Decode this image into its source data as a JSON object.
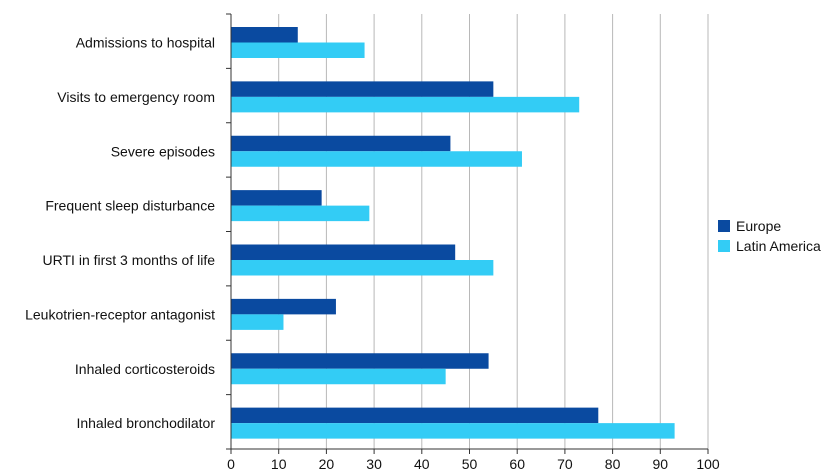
{
  "chart_data": {
    "type": "bar",
    "orientation": "horizontal",
    "title": "",
    "xlabel": "",
    "ylabel": "",
    "xlim": [
      0,
      100
    ],
    "x_ticks": [
      "0",
      "10",
      "20",
      "30",
      "40",
      "50",
      "60",
      "70",
      "80",
      "90",
      "100"
    ],
    "grid": "vertical",
    "legend_position": "right",
    "categories": [
      "Admissions to hospital",
      "Visits to emergency room",
      "Severe episodes",
      "Frequent sleep disturbance",
      "URTI in first 3 months of life",
      "Leukotrien-receptor antagonist",
      "Inhaled corticosteroids",
      "Inhaled bronchodilator"
    ],
    "series": [
      {
        "name": "Europe",
        "color": "#0a4aa0",
        "values": [
          14,
          55,
          46,
          19,
          47,
          22,
          54,
          77
        ]
      },
      {
        "name": "Latin America",
        "color": "#33ccf5",
        "values": [
          28,
          73,
          61,
          29,
          55,
          11,
          45,
          93
        ]
      }
    ]
  }
}
